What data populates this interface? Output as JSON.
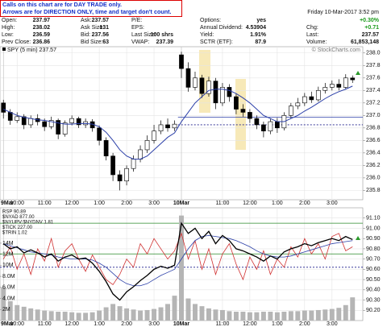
{
  "header": {
    "notes": [
      "Calls on this chart are for DAY TRADE only.",
      "Arrows are for DIRECTION ONLY, time and target don't count."
    ],
    "timestamp": "Friday 10-Mar-2017 3:52 pm",
    "rows": [
      [
        {
          "label": "Open:",
          "value": "237.97"
        },
        {
          "label": "Ask:",
          "value": "237.57"
        },
        {
          "label": "P/E:"
        },
        {
          "label": "Options:",
          "value": "yes"
        },
        {
          "value": "+0.30%",
          "color": "#1a9a1a"
        }
      ],
      [
        {
          "label": "High:",
          "value": "238.02"
        },
        {
          "label": "Ask Size:",
          "value": "131"
        },
        {
          "label": "EPS:"
        },
        {
          "label": "Annual Dividend:",
          "value": "4.53904"
        },
        {
          "label": "Chg:",
          "value": "+0.71",
          "color": "#1a9a1a"
        }
      ],
      [
        {
          "label": "Low:",
          "value": "236.59"
        },
        {
          "label": "Bid:",
          "value": "237.56"
        },
        {
          "label": "Last Size:",
          "value": "100 shrs"
        },
        {
          "label": "Yield:",
          "value": "1.91%"
        },
        {
          "label": "Last:",
          "value": "237.57"
        }
      ],
      [
        {
          "label": "Prev Close:",
          "value": "236.86"
        },
        {
          "label": "Bid Size:",
          "value": "63"
        },
        {
          "label": "VWAP:",
          "value": "237.39"
        },
        {
          "label": "SCTR (ETF):",
          "value": "87.9"
        },
        {
          "label": "Volume:",
          "value": "61,853,148"
        }
      ]
    ]
  },
  "chart_data": [
    {
      "type": "candlestick",
      "legend": "SPY (5 min) 237.57",
      "credit": "© StockCharts.com",
      "color": "#000000",
      "grid": true,
      "categories": [
        "9Mar",
        null,
        "10:00",
        null,
        null,
        null,
        "11:00",
        null,
        null,
        null,
        "12:00",
        null,
        null,
        null,
        "1:00",
        null,
        null,
        null,
        "2:00",
        null,
        null,
        null,
        "3:00",
        null,
        null,
        null,
        "10Mar",
        null,
        null,
        null,
        null,
        null,
        "11:00",
        null,
        null,
        null,
        "12:00",
        null,
        null,
        null,
        "1:00",
        null,
        null,
        null,
        "2:00",
        null,
        null,
        null,
        "3:00",
        null,
        null,
        null
      ],
      "open": [
        237.2,
        237.05,
        236.92,
        236.98,
        236.85,
        236.95,
        236.9,
        236.82,
        236.92,
        236.7,
        236.88,
        236.95,
        236.85,
        236.9,
        236.8,
        236.6,
        236.35,
        236.05,
        235.95,
        236.15,
        236.3,
        236.45,
        236.6,
        236.75,
        236.85,
        236.8,
        237.97,
        237.75,
        237.45,
        237.6,
        237.35,
        237.55,
        237.2,
        237.45,
        237.3,
        237.1,
        237.05,
        236.95,
        236.85,
        236.75,
        236.9,
        236.8,
        237.0,
        237.15,
        237.2,
        237.3,
        237.25,
        237.4,
        237.45,
        237.5,
        237.45,
        237.6
      ],
      "high": [
        237.25,
        237.1,
        237.05,
        237.02,
        237.0,
        237.02,
        236.95,
        236.98,
        236.95,
        236.92,
        237.0,
        236.98,
        236.95,
        236.94,
        236.84,
        236.65,
        236.4,
        236.12,
        236.2,
        236.36,
        236.52,
        236.68,
        236.85,
        236.92,
        236.95,
        236.92,
        238.02,
        237.85,
        237.7,
        237.65,
        237.62,
        237.6,
        237.52,
        237.5,
        237.35,
        237.18,
        237.1,
        237.0,
        236.9,
        236.95,
        236.96,
        237.05,
        237.2,
        237.28,
        237.36,
        237.38,
        237.46,
        237.52,
        237.56,
        237.58,
        237.66,
        237.64
      ],
      "low": [
        236.95,
        236.85,
        236.88,
        236.78,
        236.8,
        236.84,
        236.75,
        236.78,
        236.62,
        236.66,
        236.84,
        236.8,
        236.8,
        236.74,
        236.52,
        236.28,
        235.95,
        235.8,
        235.88,
        236.1,
        236.25,
        236.4,
        236.55,
        236.7,
        236.74,
        236.75,
        237.6,
        237.38,
        237.4,
        237.28,
        237.3,
        237.1,
        237.15,
        237.22,
        237.02,
        236.98,
        236.88,
        236.78,
        236.65,
        236.7,
        236.72,
        236.76,
        236.95,
        237.1,
        237.15,
        237.2,
        237.22,
        237.35,
        237.4,
        237.4,
        237.42,
        237.52
      ],
      "close": [
        237.05,
        236.92,
        236.98,
        236.85,
        236.95,
        236.9,
        236.82,
        236.92,
        236.7,
        236.88,
        236.95,
        236.85,
        236.9,
        236.8,
        236.6,
        236.35,
        236.05,
        235.95,
        236.15,
        236.3,
        236.45,
        236.6,
        236.75,
        236.85,
        236.8,
        236.86,
        237.75,
        237.45,
        237.6,
        237.35,
        237.55,
        237.2,
        237.45,
        237.3,
        237.1,
        237.05,
        236.95,
        236.85,
        236.75,
        236.9,
        236.8,
        237.0,
        237.15,
        237.2,
        237.3,
        237.25,
        237.4,
        237.45,
        237.5,
        237.45,
        237.6,
        237.57
      ],
      "ma": {
        "color": "#2b3fa8",
        "values": [
          237.1,
          237.05,
          237.0,
          236.97,
          236.95,
          236.93,
          236.92,
          236.9,
          236.88,
          236.86,
          236.86,
          236.87,
          236.87,
          236.86,
          236.82,
          236.73,
          236.6,
          236.45,
          236.35,
          236.3,
          236.3,
          236.35,
          236.45,
          236.55,
          236.65,
          236.72,
          236.9,
          237.05,
          237.2,
          237.3,
          237.4,
          237.42,
          237.42,
          237.4,
          237.35,
          237.28,
          237.2,
          237.1,
          237.0,
          236.95,
          236.9,
          236.9,
          236.95,
          237.0,
          237.07,
          237.13,
          237.2,
          237.27,
          237.33,
          237.38,
          237.42,
          237.47
        ]
      },
      "reference_lines": [
        {
          "value": 236.97,
          "color": "#2b3fa8",
          "dash": false
        },
        {
          "value": 236.85,
          "color": "#1a1a8a",
          "dash": true
        }
      ],
      "ylim": [
        235.65,
        238.1
      ],
      "yticks": [
        235.8,
        {
          "value": 236.0,
          "label": "236.0"
        },
        236.2,
        236.4,
        236.6,
        236.8,
        {
          "value": 237.0,
          "label": "237.0"
        },
        237.2,
        237.4,
        237.6,
        237.8,
        {
          "value": 238.0,
          "label": "238.0"
        }
      ]
    },
    {
      "type": "line",
      "grid": true,
      "legend": [
        "RSP 90.89",
        "$NYAD 877.00",
        "$NYUPV:$NYDNV 1.81",
        "$TICK 227.00",
        "$TRIN 1.02"
      ],
      "categories": [
        "9Mar",
        null,
        "10:00",
        null,
        null,
        null,
        "11:00",
        null,
        null,
        null,
        "12:00",
        null,
        null,
        null,
        "1:00",
        null,
        null,
        null,
        "2:00",
        null,
        null,
        null,
        "3:00",
        null,
        null,
        null,
        "10Mar",
        null,
        null,
        null,
        null,
        null,
        "11:00",
        null,
        null,
        null,
        "12:00",
        null,
        null,
        null,
        "1:00",
        null,
        null,
        null,
        "2:00",
        null,
        null,
        null,
        "3:00",
        null,
        null,
        null
      ],
      "series": [
        {
          "color": "#b5b5b5",
          "kind": "bar",
          "axis": "y2",
          "values": [
            6000000,
            3500000,
            2800000,
            2500000,
            2200000,
            2000000,
            1800000,
            1700000,
            1600000,
            1600000,
            1500000,
            1400000,
            1400000,
            1500000,
            1800000,
            2400000,
            3000000,
            2600000,
            2200000,
            2000000,
            1800000,
            1900000,
            2100000,
            2400000,
            3000000,
            4500000,
            19000000,
            4000000,
            3000000,
            2600000,
            2200000,
            2000000,
            1900000,
            1700000,
            1600000,
            1600000,
            1500000,
            1500000,
            1600000,
            1600000,
            1500000,
            1600000,
            1700000,
            1700000,
            1800000,
            1800000,
            1900000,
            2000000,
            2100000,
            2300000,
            2800000,
            4200000
          ]
        },
        {
          "color": "#d03030",
          "values": [
            90.7,
            90.82,
            90.6,
            90.75,
            90.55,
            90.8,
            90.68,
            90.9,
            90.62,
            90.78,
            90.85,
            90.7,
            90.58,
            90.74,
            90.62,
            90.5,
            90.45,
            90.55,
            90.7,
            90.62,
            90.85,
            90.75,
            90.9,
            90.8,
            90.7,
            90.78,
            90.95,
            90.7,
            90.88,
            90.6,
            90.8,
            90.55,
            90.75,
            90.85,
            90.65,
            90.5,
            90.72,
            90.6,
            90.78,
            90.55,
            90.7,
            90.62,
            90.82,
            90.72,
            90.9,
            90.75,
            90.85,
            90.7,
            90.92,
            90.95,
            90.78,
            90.82
          ]
        },
        {
          "color": "#2b3fa8",
          "values": [
            90.85,
            90.83,
            90.81,
            90.79,
            90.77,
            90.76,
            90.75,
            90.74,
            90.72,
            90.71,
            90.7,
            90.7,
            90.7,
            90.69,
            90.66,
            90.62,
            90.56,
            90.5,
            90.46,
            90.44,
            90.44,
            90.46,
            90.5,
            90.54,
            90.57,
            90.6,
            90.7,
            90.8,
            90.88,
            90.92,
            90.93,
            90.92,
            90.91,
            90.9,
            90.88,
            90.85,
            90.82,
            90.78,
            90.75,
            90.73,
            90.72,
            90.72,
            90.73,
            90.75,
            90.77,
            90.79,
            90.81,
            90.83,
            90.85,
            90.86,
            90.87,
            90.88
          ]
        },
        {
          "color": "#000000",
          "values": [
            90.85,
            90.8,
            90.82,
            90.76,
            90.79,
            90.76,
            90.72,
            90.75,
            90.68,
            90.72,
            90.74,
            90.7,
            90.71,
            90.66,
            90.58,
            90.48,
            90.36,
            90.3,
            90.38,
            90.43,
            90.49,
            90.54,
            90.6,
            90.63,
            90.61,
            90.64,
            91.05,
            90.95,
            91.0,
            90.9,
            90.97,
            90.85,
            90.93,
            90.88,
            90.8,
            90.78,
            90.75,
            90.72,
            90.68,
            90.73,
            90.7,
            90.77,
            90.8,
            90.82,
            90.85,
            90.83,
            90.86,
            90.88,
            90.9,
            90.88,
            90.92,
            90.89
          ]
        }
      ],
      "reference_lines": [
        {
          "value": 91.05,
          "color": "#2a8a2a",
          "dash": false
        },
        {
          "value": 90.75,
          "color": "#2a8a2a",
          "dash": false
        },
        {
          "value": 90.62,
          "color": "#1a1a8a",
          "dash": true
        }
      ],
      "ylim": [
        90.1,
        91.2
      ],
      "yticks": [
        {
          "value": 90.2,
          "label": "90.20"
        },
        {
          "value": 90.3,
          "label": "90.30"
        },
        {
          "value": 90.4,
          "label": "90.40"
        },
        {
          "value": 90.5,
          "label": "90.50"
        },
        {
          "value": 90.6,
          "label": "90.60"
        },
        {
          "value": 90.7,
          "label": "90.70"
        },
        {
          "value": 90.8,
          "label": "90.80"
        },
        {
          "value": 90.9,
          "label": "90.90"
        },
        {
          "value": 91.0,
          "label": "91.00"
        },
        {
          "value": 91.1,
          "label": "91.10"
        }
      ],
      "y2lim": [
        0,
        20400000
      ],
      "y2ticks": [
        {
          "value": 2000000,
          "label": "2M"
        },
        {
          "value": 4000000,
          "label": "4.0M"
        },
        {
          "value": 6000000,
          "label": "6.0M"
        },
        {
          "value": 8000000,
          "label": "8.0M"
        },
        {
          "value": 10000000,
          "label": "10M"
        },
        {
          "value": 12000000,
          "label": "12M"
        },
        {
          "value": 14000000,
          "label": "14M"
        }
      ]
    }
  ]
}
